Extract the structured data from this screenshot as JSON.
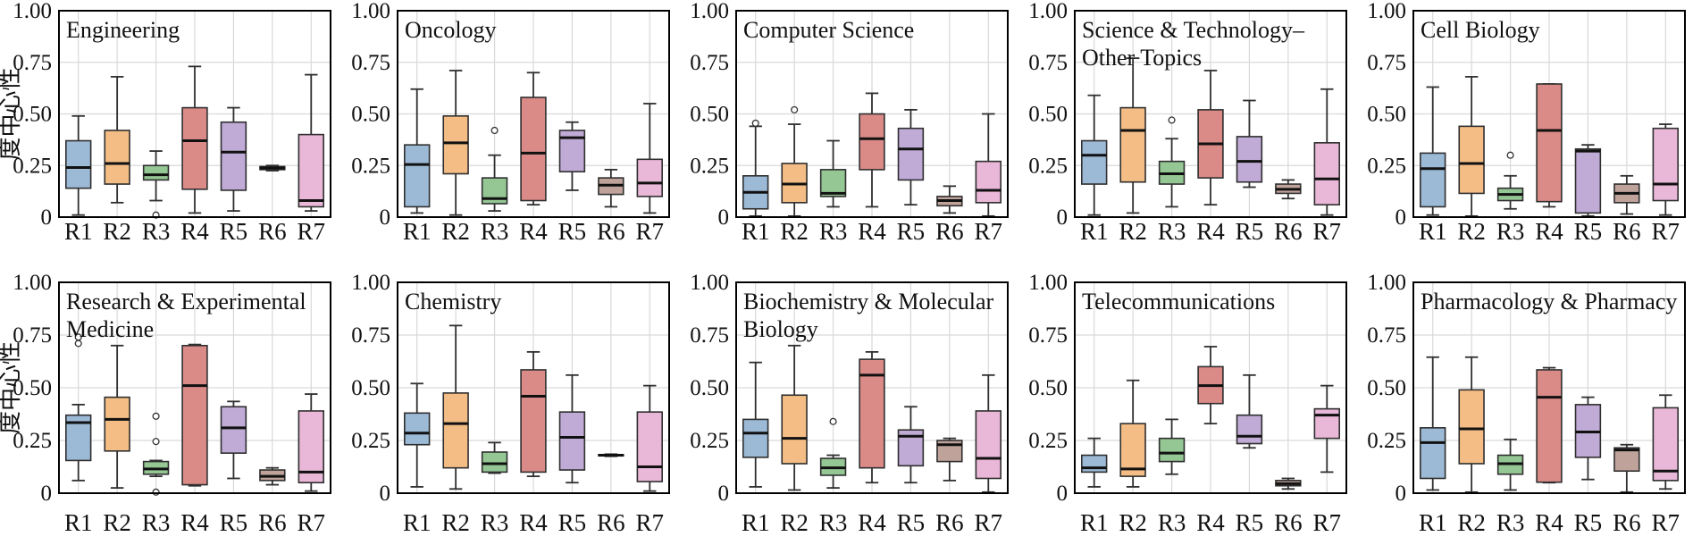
{
  "page": {
    "background": "#ffffff"
  },
  "axis": {
    "ylabel": "度中心性",
    "y_ticks": [
      "0",
      "0.25",
      "0.50",
      "0.75",
      "1.00"
    ],
    "y_tick_values": [
      0,
      0.25,
      0.5,
      0.75,
      1.0
    ],
    "ylim": [
      0,
      1
    ],
    "categories": [
      "R1",
      "R2",
      "R3",
      "R4",
      "R5",
      "R6",
      "R7"
    ],
    "grid": true
  },
  "style": {
    "box_colors": [
      "#9cb9d6",
      "#f3bd85",
      "#94c794",
      "#da8a87",
      "#c0aad6",
      "#bfa39b",
      "#e9b7d7"
    ],
    "edge_color": "#2f2f2f",
    "median_color": "#111111",
    "grid_color": "#d9d9d9",
    "frame_color": "#000000",
    "outlier_fill": "#ffffff"
  },
  "chart_data": [
    {
      "type": "box",
      "title_lines": [
        "Engineering"
      ],
      "categories": [
        "R1",
        "R2",
        "R3",
        "R4",
        "R5",
        "R6",
        "R7"
      ],
      "ylim": [
        0,
        1
      ],
      "boxes": [
        {
          "label": "R1",
          "low": 0.01,
          "q1": 0.14,
          "median": 0.24,
          "q3": 0.37,
          "high": 0.49,
          "outliers": []
        },
        {
          "label": "R2",
          "low": 0.07,
          "q1": 0.16,
          "median": 0.26,
          "q3": 0.42,
          "high": 0.68,
          "outliers": []
        },
        {
          "label": "R3",
          "low": 0.08,
          "q1": 0.18,
          "median": 0.205,
          "q3": 0.25,
          "high": 0.32,
          "outliers": [
            0.01
          ]
        },
        {
          "label": "R4",
          "low": 0.02,
          "q1": 0.135,
          "median": 0.37,
          "q3": 0.53,
          "high": 0.73,
          "outliers": []
        },
        {
          "label": "R5",
          "low": 0.03,
          "q1": 0.13,
          "median": 0.315,
          "q3": 0.46,
          "high": 0.53,
          "outliers": []
        },
        {
          "label": "R6",
          "low": 0.225,
          "q1": 0.23,
          "median": 0.238,
          "q3": 0.245,
          "high": 0.25,
          "outliers": []
        },
        {
          "label": "R7",
          "low": 0.03,
          "q1": 0.05,
          "median": 0.08,
          "q3": 0.4,
          "high": 0.69,
          "outliers": []
        }
      ]
    },
    {
      "type": "box",
      "title_lines": [
        "Oncology"
      ],
      "categories": [
        "R1",
        "R2",
        "R3",
        "R4",
        "R5",
        "R6",
        "R7"
      ],
      "ylim": [
        0,
        1
      ],
      "boxes": [
        {
          "label": "R1",
          "low": 0.02,
          "q1": 0.05,
          "median": 0.255,
          "q3": 0.35,
          "high": 0.62,
          "outliers": []
        },
        {
          "label": "R2",
          "low": 0.01,
          "q1": 0.21,
          "median": 0.36,
          "q3": 0.49,
          "high": 0.71,
          "outliers": []
        },
        {
          "label": "R3",
          "low": 0.03,
          "q1": 0.065,
          "median": 0.09,
          "q3": 0.19,
          "high": 0.3,
          "outliers": [
            0.42
          ]
        },
        {
          "label": "R4",
          "low": 0.06,
          "q1": 0.08,
          "median": 0.31,
          "q3": 0.58,
          "high": 0.7,
          "outliers": []
        },
        {
          "label": "R5",
          "low": 0.13,
          "q1": 0.22,
          "median": 0.385,
          "q3": 0.42,
          "high": 0.46,
          "outliers": []
        },
        {
          "label": "R6",
          "low": 0.05,
          "q1": 0.11,
          "median": 0.155,
          "q3": 0.19,
          "high": 0.23,
          "outliers": []
        },
        {
          "label": "R7",
          "low": 0.02,
          "q1": 0.1,
          "median": 0.165,
          "q3": 0.28,
          "high": 0.55,
          "outliers": []
        }
      ]
    },
    {
      "type": "box",
      "title_lines": [
        "Computer Science"
      ],
      "categories": [
        "R1",
        "R2",
        "R3",
        "R4",
        "R5",
        "R6",
        "R7"
      ],
      "ylim": [
        0,
        1
      ],
      "boxes": [
        {
          "label": "R1",
          "low": 0.005,
          "q1": 0.04,
          "median": 0.12,
          "q3": 0.2,
          "high": 0.44,
          "outliers": [
            0.455
          ]
        },
        {
          "label": "R2",
          "low": 0.005,
          "q1": 0.07,
          "median": 0.16,
          "q3": 0.26,
          "high": 0.45,
          "outliers": [
            0.52
          ]
        },
        {
          "label": "R3",
          "low": 0.05,
          "q1": 0.1,
          "median": 0.115,
          "q3": 0.23,
          "high": 0.37,
          "outliers": []
        },
        {
          "label": "R4",
          "low": 0.05,
          "q1": 0.23,
          "median": 0.38,
          "q3": 0.5,
          "high": 0.6,
          "outliers": []
        },
        {
          "label": "R5",
          "low": 0.06,
          "q1": 0.18,
          "median": 0.33,
          "q3": 0.43,
          "high": 0.52,
          "outliers": []
        },
        {
          "label": "R6",
          "low": 0.02,
          "q1": 0.055,
          "median": 0.08,
          "q3": 0.1,
          "high": 0.15,
          "outliers": []
        },
        {
          "label": "R7",
          "low": 0.005,
          "q1": 0.07,
          "median": 0.13,
          "q3": 0.27,
          "high": 0.5,
          "outliers": []
        }
      ]
    },
    {
      "type": "box",
      "title_lines": [
        "Science & Technology–",
        "Other Topics"
      ],
      "categories": [
        "R1",
        "R2",
        "R3",
        "R4",
        "R5",
        "R6",
        "R7"
      ],
      "ylim": [
        0,
        1
      ],
      "boxes": [
        {
          "label": "R1",
          "low": 0.01,
          "q1": 0.16,
          "median": 0.3,
          "q3": 0.37,
          "high": 0.59,
          "outliers": []
        },
        {
          "label": "R2",
          "low": 0.02,
          "q1": 0.17,
          "median": 0.42,
          "q3": 0.53,
          "high": 0.77,
          "outliers": []
        },
        {
          "label": "R3",
          "low": 0.05,
          "q1": 0.16,
          "median": 0.21,
          "q3": 0.27,
          "high": 0.38,
          "outliers": [
            0.47
          ]
        },
        {
          "label": "R4",
          "low": 0.06,
          "q1": 0.19,
          "median": 0.355,
          "q3": 0.52,
          "high": 0.71,
          "outliers": []
        },
        {
          "label": "R5",
          "low": 0.145,
          "q1": 0.17,
          "median": 0.27,
          "q3": 0.39,
          "high": 0.565,
          "outliers": []
        },
        {
          "label": "R6",
          "low": 0.09,
          "q1": 0.115,
          "median": 0.135,
          "q3": 0.16,
          "high": 0.18,
          "outliers": []
        },
        {
          "label": "R7",
          "low": 0.01,
          "q1": 0.06,
          "median": 0.185,
          "q3": 0.36,
          "high": 0.62,
          "outliers": []
        }
      ]
    },
    {
      "type": "box",
      "title_lines": [
        "Cell Biology"
      ],
      "categories": [
        "R1",
        "R2",
        "R3",
        "R4",
        "R5",
        "R6",
        "R7"
      ],
      "ylim": [
        0,
        1
      ],
      "boxes": [
        {
          "label": "R1",
          "low": 0.01,
          "q1": 0.05,
          "median": 0.235,
          "q3": 0.31,
          "high": 0.63,
          "outliers": []
        },
        {
          "label": "R2",
          "low": 0.005,
          "q1": 0.115,
          "median": 0.26,
          "q3": 0.44,
          "high": 0.68,
          "outliers": []
        },
        {
          "label": "R3",
          "low": 0.04,
          "q1": 0.08,
          "median": 0.11,
          "q3": 0.14,
          "high": 0.2,
          "outliers": [
            0.3
          ]
        },
        {
          "label": "R4",
          "low": 0.05,
          "q1": 0.075,
          "median": 0.42,
          "q3": 0.645,
          "high": 0.645,
          "outliers": []
        },
        {
          "label": "R5",
          "low": 0.005,
          "q1": 0.02,
          "median": 0.32,
          "q3": 0.33,
          "high": 0.35,
          "outliers": []
        },
        {
          "label": "R6",
          "low": 0.015,
          "q1": 0.07,
          "median": 0.115,
          "q3": 0.16,
          "high": 0.2,
          "outliers": []
        },
        {
          "label": "R7",
          "low": 0.01,
          "q1": 0.08,
          "median": 0.16,
          "q3": 0.43,
          "high": 0.45,
          "outliers": []
        }
      ]
    },
    {
      "type": "box",
      "title_lines": [
        "Research & Experimental",
        "Medicine"
      ],
      "categories": [
        "R1",
        "R2",
        "R3",
        "R4",
        "R5",
        "R6",
        "R7"
      ],
      "ylim": [
        0,
        1
      ],
      "boxes": [
        {
          "label": "R1",
          "low": 0.06,
          "q1": 0.155,
          "median": 0.335,
          "q3": 0.37,
          "high": 0.42,
          "outliers": [
            0.71,
            0.74
          ]
        },
        {
          "label": "R2",
          "low": 0.025,
          "q1": 0.2,
          "median": 0.35,
          "q3": 0.455,
          "high": 0.7,
          "outliers": []
        },
        {
          "label": "R3",
          "low": 0.08,
          "q1": 0.09,
          "median": 0.115,
          "q3": 0.15,
          "high": 0.155,
          "outliers": [
            0.365,
            0.245,
            0.005
          ]
        },
        {
          "label": "R4",
          "low": 0.035,
          "q1": 0.04,
          "median": 0.51,
          "q3": 0.7,
          "high": 0.705,
          "outliers": []
        },
        {
          "label": "R5",
          "low": 0.07,
          "q1": 0.19,
          "median": 0.31,
          "q3": 0.41,
          "high": 0.435,
          "outliers": []
        },
        {
          "label": "R6",
          "low": 0.04,
          "q1": 0.06,
          "median": 0.08,
          "q3": 0.11,
          "high": 0.12,
          "outliers": []
        },
        {
          "label": "R7",
          "low": 0.01,
          "q1": 0.05,
          "median": 0.1,
          "q3": 0.39,
          "high": 0.47,
          "outliers": []
        }
      ]
    },
    {
      "type": "box",
      "title_lines": [
        "Chemistry"
      ],
      "categories": [
        "R1",
        "R2",
        "R3",
        "R4",
        "R5",
        "R6",
        "R7"
      ],
      "ylim": [
        0,
        1
      ],
      "boxes": [
        {
          "label": "R1",
          "low": 0.03,
          "q1": 0.23,
          "median": 0.285,
          "q3": 0.38,
          "high": 0.52,
          "outliers": []
        },
        {
          "label": "R2",
          "low": 0.02,
          "q1": 0.12,
          "median": 0.33,
          "q3": 0.475,
          "high": 0.795,
          "outliers": []
        },
        {
          "label": "R3",
          "low": 0.095,
          "q1": 0.1,
          "median": 0.14,
          "q3": 0.195,
          "high": 0.24,
          "outliers": []
        },
        {
          "label": "R4",
          "low": 0.08,
          "q1": 0.1,
          "median": 0.46,
          "q3": 0.585,
          "high": 0.67,
          "outliers": []
        },
        {
          "label": "R5",
          "low": 0.05,
          "q1": 0.11,
          "median": 0.265,
          "q3": 0.385,
          "high": 0.56,
          "outliers": []
        },
        {
          "label": "R6",
          "low": 0.175,
          "q1": 0.177,
          "median": 0.18,
          "q3": 0.183,
          "high": 0.185,
          "outliers": []
        },
        {
          "label": "R7",
          "low": 0.01,
          "q1": 0.055,
          "median": 0.125,
          "q3": 0.385,
          "high": 0.51,
          "outliers": []
        }
      ]
    },
    {
      "type": "box",
      "title_lines": [
        "Biochemistry & Molecular",
        "Biology"
      ],
      "categories": [
        "R1",
        "R2",
        "R3",
        "R4",
        "R5",
        "R6",
        "R7"
      ],
      "ylim": [
        0,
        1
      ],
      "boxes": [
        {
          "label": "R1",
          "low": 0.03,
          "q1": 0.17,
          "median": 0.285,
          "q3": 0.35,
          "high": 0.62,
          "outliers": []
        },
        {
          "label": "R2",
          "low": 0.015,
          "q1": 0.14,
          "median": 0.26,
          "q3": 0.465,
          "high": 0.7,
          "outliers": []
        },
        {
          "label": "R3",
          "low": 0.025,
          "q1": 0.085,
          "median": 0.12,
          "q3": 0.165,
          "high": 0.18,
          "outliers": [
            0.34
          ]
        },
        {
          "label": "R4",
          "low": 0.05,
          "q1": 0.12,
          "median": 0.56,
          "q3": 0.635,
          "high": 0.67,
          "outliers": []
        },
        {
          "label": "R5",
          "low": 0.05,
          "q1": 0.13,
          "median": 0.27,
          "q3": 0.3,
          "high": 0.41,
          "outliers": []
        },
        {
          "label": "R6",
          "low": 0.06,
          "q1": 0.15,
          "median": 0.23,
          "q3": 0.25,
          "high": 0.26,
          "outliers": []
        },
        {
          "label": "R7",
          "low": 0.005,
          "q1": 0.07,
          "median": 0.165,
          "q3": 0.39,
          "high": 0.56,
          "outliers": []
        }
      ]
    },
    {
      "type": "box",
      "title_lines": [
        "Telecommunications"
      ],
      "categories": [
        "R1",
        "R2",
        "R3",
        "R4",
        "R5",
        "R6",
        "R7"
      ],
      "ylim": [
        0,
        1
      ],
      "boxes": [
        {
          "label": "R1",
          "low": 0.03,
          "q1": 0.1,
          "median": 0.12,
          "q3": 0.18,
          "high": 0.26,
          "outliers": []
        },
        {
          "label": "R2",
          "low": 0.03,
          "q1": 0.08,
          "median": 0.115,
          "q3": 0.33,
          "high": 0.535,
          "outliers": []
        },
        {
          "label": "R3",
          "low": 0.09,
          "q1": 0.15,
          "median": 0.19,
          "q3": 0.26,
          "high": 0.35,
          "outliers": []
        },
        {
          "label": "R4",
          "low": 0.33,
          "q1": 0.425,
          "median": 0.51,
          "q3": 0.6,
          "high": 0.695,
          "outliers": []
        },
        {
          "label": "R5",
          "low": 0.215,
          "q1": 0.235,
          "median": 0.27,
          "q3": 0.37,
          "high": 0.56,
          "outliers": []
        },
        {
          "label": "R6",
          "low": 0.02,
          "q1": 0.035,
          "median": 0.045,
          "q3": 0.06,
          "high": 0.07,
          "outliers": []
        },
        {
          "label": "R7",
          "low": 0.1,
          "q1": 0.26,
          "median": 0.37,
          "q3": 0.4,
          "high": 0.51,
          "outliers": []
        }
      ]
    },
    {
      "type": "box",
      "title_lines": [
        "Pharmacology & Pharmacy"
      ],
      "categories": [
        "R1",
        "R2",
        "R3",
        "R4",
        "R5",
        "R6",
        "R7"
      ],
      "ylim": [
        0,
        1
      ],
      "boxes": [
        {
          "label": "R1",
          "low": 0.015,
          "q1": 0.07,
          "median": 0.24,
          "q3": 0.31,
          "high": 0.645,
          "outliers": []
        },
        {
          "label": "R2",
          "low": 0.005,
          "q1": 0.14,
          "median": 0.305,
          "q3": 0.49,
          "high": 0.645,
          "outliers": []
        },
        {
          "label": "R3",
          "low": 0.015,
          "q1": 0.09,
          "median": 0.14,
          "q3": 0.18,
          "high": 0.255,
          "outliers": []
        },
        {
          "label": "R4",
          "low": 0.05,
          "q1": 0.052,
          "median": 0.455,
          "q3": 0.585,
          "high": 0.595,
          "outliers": []
        },
        {
          "label": "R5",
          "low": 0.065,
          "q1": 0.17,
          "median": 0.29,
          "q3": 0.42,
          "high": 0.455,
          "outliers": []
        },
        {
          "label": "R6",
          "low": 0.005,
          "q1": 0.105,
          "median": 0.205,
          "q3": 0.215,
          "high": 0.23,
          "outliers": []
        },
        {
          "label": "R7",
          "low": 0.02,
          "q1": 0.06,
          "median": 0.105,
          "q3": 0.405,
          "high": 0.465,
          "outliers": []
        }
      ]
    }
  ]
}
